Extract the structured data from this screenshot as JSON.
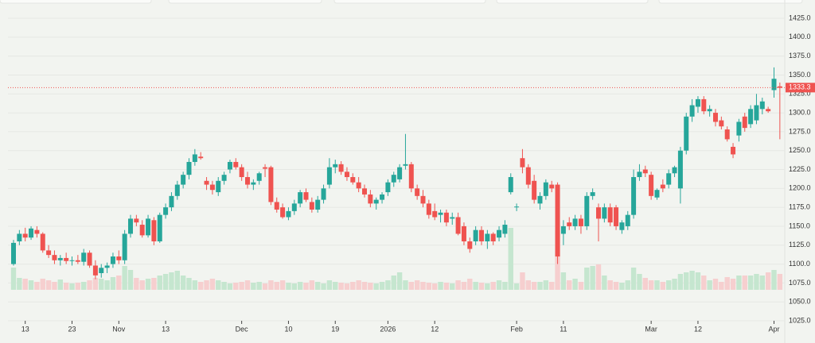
{
  "chart_data": {
    "type": "candlestick",
    "categories": [
      null,
      null,
      "13",
      null,
      null,
      null,
      null,
      null,
      null,
      null,
      "23",
      null,
      null,
      null,
      null,
      null,
      null,
      null,
      "Nov",
      null,
      null,
      null,
      null,
      null,
      null,
      null,
      "13",
      null,
      null,
      null,
      null,
      null,
      null,
      null,
      null,
      null,
      null,
      null,
      null,
      "Dec",
      null,
      null,
      null,
      null,
      null,
      null,
      null,
      "10",
      null,
      null,
      null,
      null,
      null,
      null,
      null,
      "19",
      null,
      null,
      null,
      null,
      null,
      null,
      null,
      null,
      "2026",
      null,
      null,
      null,
      null,
      null,
      null,
      null,
      "12",
      null,
      null,
      null,
      null,
      null,
      null,
      null,
      null,
      null,
      null,
      null,
      null,
      null,
      "Feb",
      null,
      null,
      null,
      null,
      null,
      null,
      null,
      "11",
      null,
      null,
      null,
      null,
      null,
      null,
      null,
      null,
      null,
      null,
      null,
      null,
      null,
      null,
      "Mar",
      null,
      null,
      null,
      null,
      null,
      null,
      null,
      "12",
      null,
      null,
      null,
      null,
      null,
      null,
      null,
      null,
      null,
      null,
      null,
      null,
      "Apr",
      null
    ],
    "open": [
      1100,
      1130,
      1140,
      1135,
      1145,
      1140,
      1118,
      1112,
      1105,
      1108,
      1104,
      1105,
      1103,
      1115,
      1098,
      1088,
      1095,
      1100,
      1110,
      1105,
      1140,
      1160,
      1152,
      1138,
      1158,
      1130,
      1165,
      1175,
      1190,
      1205,
      1218,
      1235,
      1242,
      1210,
      1205,
      1195,
      1210,
      1225,
      1235,
      1228,
      1215,
      1205,
      1210,
      1228,
      1228,
      1182,
      1175,
      1162,
      1170,
      1180,
      1195,
      1182,
      1172,
      1185,
      1205,
      1228,
      1232,
      1222,
      1215,
      1208,
      1200,
      1192,
      1180,
      1185,
      1195,
      1208,
      1212,
      1230,
      1232,
      1200,
      1190,
      1180,
      1170,
      1165,
      1168,
      1160,
      1162,
      1150,
      1130,
      1130,
      1145,
      1130,
      1140,
      1135,
      1140,
      1195,
      1175,
      1240,
      1228,
      1210,
      1180,
      1190,
      1205,
      1205,
      1140,
      1155,
      1150,
      1160,
      1150,
      1190,
      1175,
      1160,
      1175,
      1175,
      1145,
      1150,
      1165,
      1215,
      1225,
      1218,
      1188,
      1205,
      1205,
      1220,
      1200,
      1250,
      1295,
      1308,
      1318,
      1302,
      1300,
      1290,
      1278,
      1255,
      1270,
      1295,
      1285,
      1290,
      1305,
      1305,
      1330,
      1335
    ],
    "high": [
      1132,
      1145,
      1148,
      1150,
      1150,
      1142,
      1125,
      1118,
      1112,
      1115,
      1110,
      1112,
      1120,
      1118,
      1105,
      1100,
      1102,
      1115,
      1118,
      1145,
      1165,
      1165,
      1158,
      1165,
      1162,
      1168,
      1180,
      1195,
      1210,
      1222,
      1240,
      1252,
      1248,
      1215,
      1210,
      1215,
      1222,
      1238,
      1240,
      1232,
      1222,
      1212,
      1222,
      1232,
      1230,
      1188,
      1180,
      1175,
      1185,
      1198,
      1200,
      1188,
      1190,
      1205,
      1240,
      1238,
      1236,
      1228,
      1220,
      1215,
      1205,
      1198,
      1188,
      1195,
      1212,
      1222,
      1232,
      1272,
      1235,
      1205,
      1198,
      1185,
      1180,
      1172,
      1172,
      1168,
      1168,
      1155,
      1135,
      1150,
      1150,
      1145,
      1142,
      1150,
      1158,
      1220,
      1180,
      1252,
      1232,
      1218,
      1195,
      1212,
      1210,
      1208,
      1158,
      1162,
      1165,
      1165,
      1195,
      1200,
      1180,
      1180,
      1180,
      1178,
      1158,
      1170,
      1225,
      1232,
      1230,
      1222,
      1200,
      1212,
      1225,
      1230,
      1255,
      1300,
      1318,
      1322,
      1322,
      1310,
      1305,
      1295,
      1282,
      1260,
      1292,
      1300,
      1310,
      1325,
      1320,
      1308,
      1360,
      1340
    ],
    "low": [
      1098,
      1125,
      1130,
      1132,
      1135,
      1115,
      1108,
      1100,
      1098,
      1100,
      1098,
      1100,
      1098,
      1095,
      1080,
      1082,
      1088,
      1095,
      1100,
      1100,
      1135,
      1150,
      1135,
      1135,
      1125,
      1128,
      1160,
      1170,
      1185,
      1200,
      1212,
      1230,
      1238,
      1198,
      1192,
      1190,
      1205,
      1220,
      1225,
      1210,
      1200,
      1198,
      1205,
      1215,
      1178,
      1168,
      1160,
      1158,
      1165,
      1175,
      1182,
      1168,
      1168,
      1180,
      1200,
      1220,
      1218,
      1210,
      1205,
      1195,
      1188,
      1175,
      1172,
      1180,
      1190,
      1202,
      1208,
      1225,
      1195,
      1185,
      1175,
      1160,
      1158,
      1155,
      1150,
      1152,
      1138,
      1125,
      1115,
      1125,
      1125,
      1120,
      1125,
      1130,
      1135,
      1192,
      1170,
      1220,
      1200,
      1180,
      1172,
      1185,
      1195,
      1100,
      1125,
      1145,
      1145,
      1140,
      1145,
      1185,
      1130,
      1155,
      1150,
      1145,
      1140,
      1145,
      1160,
      1210,
      1215,
      1185,
      1185,
      1195,
      1200,
      1215,
      1180,
      1245,
      1288,
      1300,
      1298,
      1295,
      1282,
      1278,
      1262,
      1240,
      1262,
      1275,
      1280,
      1285,
      1298,
      1300,
      1320,
      1265
    ],
    "close": [
      1128,
      1140,
      1135,
      1147,
      1140,
      1118,
      1112,
      1105,
      1108,
      1104,
      1105,
      1103,
      1115,
      1098,
      1085,
      1095,
      1098,
      1110,
      1105,
      1140,
      1160,
      1155,
      1138,
      1160,
      1130,
      1165,
      1175,
      1190,
      1205,
      1218,
      1235,
      1245,
      1240,
      1205,
      1198,
      1210,
      1218,
      1235,
      1228,
      1215,
      1205,
      1208,
      1220,
      1226,
      1182,
      1172,
      1162,
      1170,
      1180,
      1195,
      1185,
      1172,
      1185,
      1200,
      1228,
      1232,
      1222,
      1215,
      1208,
      1200,
      1192,
      1180,
      1185,
      1192,
      1208,
      1218,
      1228,
      1232,
      1200,
      1190,
      1180,
      1165,
      1162,
      1168,
      1155,
      1162,
      1140,
      1130,
      1120,
      1145,
      1130,
      1140,
      1130,
      1145,
      1152,
      1215,
      1176,
      1228,
      1205,
      1185,
      1190,
      1208,
      1200,
      1110,
      1150,
      1150,
      1160,
      1150,
      1190,
      1195,
      1160,
      1175,
      1155,
      1150,
      1155,
      1165,
      1215,
      1222,
      1220,
      1190,
      1198,
      1200,
      1220,
      1228,
      1250,
      1295,
      1310,
      1318,
      1302,
      1305,
      1288,
      1282,
      1265,
      1245,
      1288,
      1280,
      1305,
      1310,
      1315,
      1302,
      1345,
      1333
    ],
    "volume": [
      28,
      15,
      14,
      12,
      10,
      14,
      12,
      10,
      13,
      9,
      8,
      9,
      10,
      12,
      15,
      14,
      12,
      16,
      18,
      30,
      25,
      15,
      12,
      14,
      15,
      18,
      20,
      22,
      24,
      18,
      15,
      12,
      10,
      12,
      14,
      12,
      10,
      8,
      9,
      10,
      12,
      9,
      10,
      8,
      12,
      10,
      12,
      9,
      8,
      10,
      9,
      12,
      10,
      8,
      12,
      10,
      9,
      8,
      10,
      12,
      10,
      9,
      8,
      10,
      12,
      18,
      22,
      12,
      10,
      12,
      10,
      9,
      8,
      10,
      9,
      8,
      12,
      10,
      14,
      10,
      9,
      8,
      10,
      12,
      10,
      78,
      8,
      22,
      12,
      10,
      10,
      12,
      10,
      75,
      22,
      12,
      14,
      10,
      28,
      30,
      32,
      18,
      12,
      10,
      9,
      12,
      28,
      20,
      15,
      12,
      12,
      10,
      12,
      14,
      20,
      22,
      24,
      22,
      18,
      12,
      14,
      10,
      16,
      14,
      18,
      18,
      18,
      20,
      18,
      22,
      25,
      20
    ],
    "up_color": "#26a69a",
    "down_color": "#ef5350",
    "volume_up_color": "#c5e6cf",
    "volume_down_color": "#f6cfcf",
    "ylim": [
      1025,
      1425
    ],
    "yticks": [
      {
        "value": 1025,
        "label": "1025.0"
      },
      {
        "value": 1050,
        "label": "1050.0"
      },
      {
        "value": 1075,
        "label": "1075.0"
      },
      {
        "value": 1100,
        "label": "1100.0"
      },
      {
        "value": 1125,
        "label": "1125.0"
      },
      {
        "value": 1150,
        "label": "1150.0"
      },
      {
        "value": 1175,
        "label": "1175.0"
      },
      {
        "value": 1200,
        "label": "1200.0"
      },
      {
        "value": 1225,
        "label": "1225.0"
      },
      {
        "value": 1250,
        "label": "1250.0"
      },
      {
        "value": 1275,
        "label": "1275.0"
      },
      {
        "value": 1300,
        "label": "1300.0"
      },
      {
        "value": 1325,
        "label": "1325.0"
      },
      {
        "value": 1350,
        "label": "1350.0"
      },
      {
        "value": 1375,
        "label": "1375.0"
      },
      {
        "value": 1400,
        "label": "1400.0"
      },
      {
        "value": 1425,
        "label": "1425.0"
      }
    ],
    "grid": true,
    "last_price": 1333.3
  }
}
